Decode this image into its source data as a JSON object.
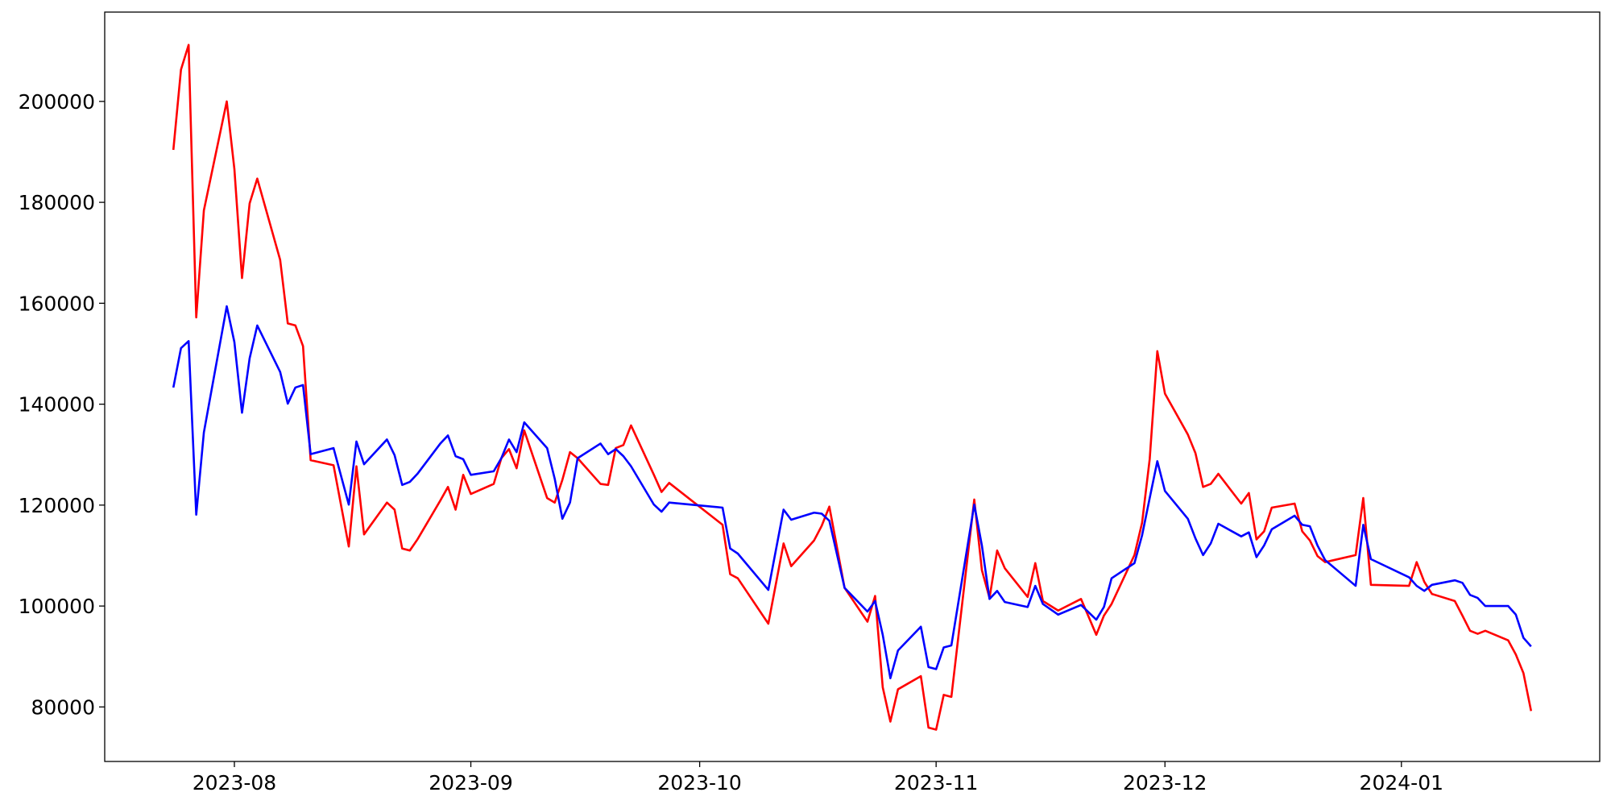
{
  "chart_data": {
    "type": "line",
    "x": [
      "2023-07-24",
      "2023-07-25",
      "2023-07-26",
      "2023-07-27",
      "2023-07-28",
      "2023-07-31",
      "2023-08-01",
      "2023-08-02",
      "2023-08-03",
      "2023-08-04",
      "2023-08-07",
      "2023-08-08",
      "2023-08-09",
      "2023-08-10",
      "2023-08-11",
      "2023-08-14",
      "2023-08-16",
      "2023-08-17",
      "2023-08-18",
      "2023-08-21",
      "2023-08-22",
      "2023-08-23",
      "2023-08-24",
      "2023-08-25",
      "2023-08-28",
      "2023-08-29",
      "2023-08-30",
      "2023-08-31",
      "2023-09-01",
      "2023-09-04",
      "2023-09-05",
      "2023-09-06",
      "2023-09-07",
      "2023-09-08",
      "2023-09-11",
      "2023-09-12",
      "2023-09-13",
      "2023-09-14",
      "2023-09-15",
      "2023-09-18",
      "2023-09-19",
      "2023-09-20",
      "2023-09-21",
      "2023-09-22",
      "2023-09-25",
      "2023-09-26",
      "2023-09-27",
      "2023-10-04",
      "2023-10-05",
      "2023-10-06",
      "2023-10-10",
      "2023-10-12",
      "2023-10-13",
      "2023-10-16",
      "2023-10-17",
      "2023-10-18",
      "2023-10-20",
      "2023-10-23",
      "2023-10-24",
      "2023-10-25",
      "2023-10-26",
      "2023-10-27",
      "2023-10-30",
      "2023-10-31",
      "2023-11-01",
      "2023-11-02",
      "2023-11-03",
      "2023-11-06",
      "2023-11-07",
      "2023-11-08",
      "2023-11-09",
      "2023-11-10",
      "2023-11-13",
      "2023-11-14",
      "2023-11-15",
      "2023-11-17",
      "2023-11-20",
      "2023-11-22",
      "2023-11-23",
      "2023-11-24",
      "2023-11-27",
      "2023-11-28",
      "2023-11-29",
      "2023-11-30",
      "2023-12-01",
      "2023-12-04",
      "2023-12-05",
      "2023-12-06",
      "2023-12-07",
      "2023-12-08",
      "2023-12-11",
      "2023-12-12",
      "2023-12-13",
      "2023-12-14",
      "2023-12-15",
      "2023-12-18",
      "2023-12-19",
      "2023-12-20",
      "2023-12-21",
      "2023-12-22",
      "2023-12-26",
      "2023-12-27",
      "2023-12-28",
      "2024-01-02",
      "2024-01-03",
      "2024-01-04",
      "2024-01-05",
      "2024-01-08",
      "2024-01-09",
      "2024-01-10",
      "2024-01-11",
      "2024-01-12",
      "2024-01-15",
      "2024-01-16",
      "2024-01-17",
      "2024-01-18"
    ],
    "series": [
      {
        "color": "#ff0000",
        "values": [
          190400,
          206300,
          211200,
          157200,
          178400,
          200000,
          186600,
          165000,
          179800,
          184700,
          168600,
          156000,
          155600,
          151500,
          128900,
          127900,
          111800,
          127700,
          114200,
          120500,
          119100,
          111400,
          111000,
          113200,
          120900,
          123600,
          119100,
          126000,
          122200,
          124200,
          129300,
          131100,
          127300,
          134800,
          121400,
          120500,
          125000,
          130500,
          129300,
          124200,
          124000,
          131300,
          131900,
          135800,
          126000,
          122600,
          124400,
          116100,
          106300,
          105500,
          96500,
          112400,
          107900,
          113000,
          115900,
          119700,
          103600,
          96900,
          102000,
          83900,
          77100,
          83500,
          86100,
          75900,
          75500,
          82400,
          82000,
          121100,
          107100,
          101600,
          111000,
          107500,
          101800,
          108500,
          101000,
          99100,
          101400,
          94300,
          98100,
          100400,
          110100,
          116500,
          129100,
          150500,
          142100,
          134000,
          130300,
          123600,
          124200,
          126200,
          120300,
          122400,
          113200,
          114800,
          119500,
          120300,
          114800,
          113000,
          109900,
          108700,
          110100,
          121400,
          104200,
          104000,
          108700,
          104800,
          102400,
          101000,
          98100,
          95100,
          94500,
          95100,
          93200,
          90400,
          86700,
          79200
        ]
      },
      {
        "color": "#0000ff",
        "values": [
          143300,
          151100,
          152500,
          118100,
          134400,
          159400,
          152300,
          138300,
          149100,
          155600,
          146400,
          140100,
          143300,
          143800,
          130100,
          131300,
          120100,
          132600,
          128100,
          133000,
          129900,
          124000,
          124600,
          126200,
          132200,
          133800,
          129700,
          129100,
          126000,
          126700,
          129300,
          133000,
          130500,
          136400,
          131300,
          125200,
          117300,
          120500,
          129300,
          132200,
          130100,
          131100,
          129700,
          127700,
          120100,
          118700,
          120500,
          119500,
          111400,
          110400,
          103200,
          119100,
          117100,
          118500,
          118300,
          116900,
          103600,
          98900,
          101000,
          94300,
          85700,
          91200,
          95900,
          87900,
          87500,
          91800,
          92200,
          120100,
          112000,
          101400,
          103000,
          100800,
          99800,
          104000,
          100400,
          98300,
          100200,
          97300,
          99800,
          105500,
          108500,
          114000,
          121400,
          128700,
          122800,
          117300,
          113400,
          110100,
          112400,
          116300,
          113800,
          114600,
          109700,
          112000,
          115200,
          117900,
          116100,
          115800,
          112000,
          109100,
          104000,
          116100,
          109300,
          105700,
          104000,
          103000,
          104200,
          105100,
          104600,
          102200,
          101600,
          100000,
          100000,
          98300,
          93700,
          92000
        ]
      }
    ],
    "xlim": [
      "2023-07-15",
      "2024-01-27"
    ],
    "xticks": [
      {
        "value": "2023-08-01",
        "label": "2023-08"
      },
      {
        "value": "2023-09-01",
        "label": "2023-09"
      },
      {
        "value": "2023-10-01",
        "label": "2023-10"
      },
      {
        "value": "2023-11-01",
        "label": "2023-11"
      },
      {
        "value": "2023-12-01",
        "label": "2023-12"
      },
      {
        "value": "2024-01-01",
        "label": "2024-01"
      }
    ],
    "ylim": [
      69200,
      217700
    ],
    "yticks": [
      80000,
      100000,
      120000,
      140000,
      160000,
      180000,
      200000
    ]
  }
}
